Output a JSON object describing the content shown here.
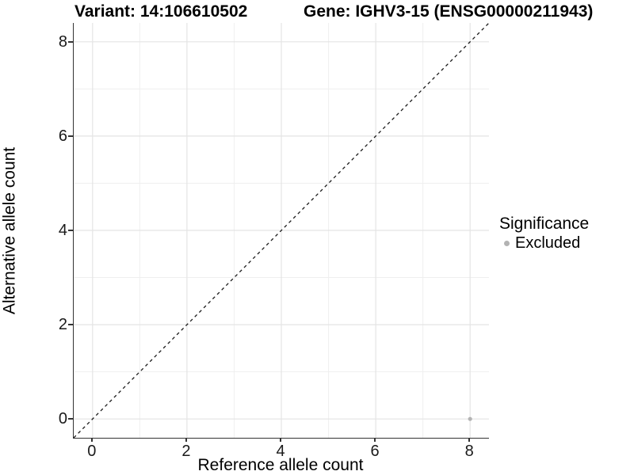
{
  "titles": {
    "variant": "Variant: 14:106610502",
    "gene": "Gene: IGHV3-15 (ENSG00000211943)"
  },
  "chart_data": {
    "type": "scatter",
    "title": "Variant: 14:106610502   Gene: IGHV3-15 (ENSG00000211943)",
    "xlabel": "Reference allele count",
    "ylabel": "Alternative allele count",
    "xlim": [
      -0.4,
      8.4
    ],
    "ylim": [
      -0.4,
      8.4
    ],
    "xticks": [
      0,
      2,
      4,
      6,
      8
    ],
    "yticks": [
      0,
      2,
      4,
      6,
      8
    ],
    "grid": true,
    "grid_interval_minor": 1,
    "reference_line": {
      "type": "identity",
      "equation": "y = x",
      "style": "dashed",
      "color": "#1a1a1a"
    },
    "series": [
      {
        "name": "Excluded",
        "color": "#b3b3b3",
        "points": [
          [
            8,
            0
          ]
        ]
      }
    ],
    "legend": {
      "title": "Significance",
      "position": "right",
      "entries": [
        {
          "label": "Excluded",
          "color": "#b3b3b3"
        }
      ]
    }
  },
  "colors": {
    "background": "#ffffff",
    "grid_major": "#e4e4e4",
    "grid_minor": "#efefef",
    "axis_line": "#333333",
    "point": "#b3b3b3"
  }
}
